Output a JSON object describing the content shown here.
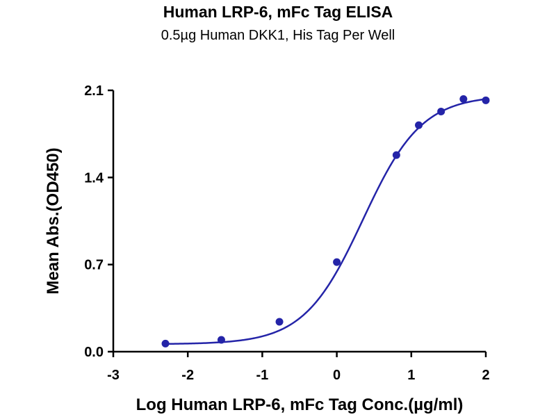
{
  "chart_data": {
    "type": "line",
    "title": "Human LRP-6, mFc Tag ELISA",
    "subtitle": "0.5µg Human DKK1, His Tag Per Well",
    "xlabel": "Log Human LRP-6, mFc Tag Conc.(µg/ml)",
    "ylabel": "Mean Abs.(OD450)",
    "xlim": [
      -3,
      2
    ],
    "ylim": [
      0.0,
      2.1
    ],
    "x_ticks": [
      "-3",
      "-2",
      "-1",
      "0",
      "1",
      "2"
    ],
    "y_ticks": [
      "0.0",
      "0.7",
      "1.4",
      "2.1"
    ],
    "grid": false,
    "series": [
      {
        "points_x": [
          -2.3,
          -1.55,
          -0.77,
          0.0,
          0.8,
          1.1,
          1.4,
          1.7,
          2.0
        ],
        "points_y": [
          0.065,
          0.095,
          0.24,
          0.72,
          1.58,
          1.82,
          1.93,
          2.03,
          2.02
        ],
        "fit_curve": {
          "model": "4PL sigmoid",
          "bottom": 0.06,
          "top": 2.06,
          "logEC50": 0.35,
          "hill": 1.1
        },
        "color": "#2424a8"
      }
    ]
  }
}
